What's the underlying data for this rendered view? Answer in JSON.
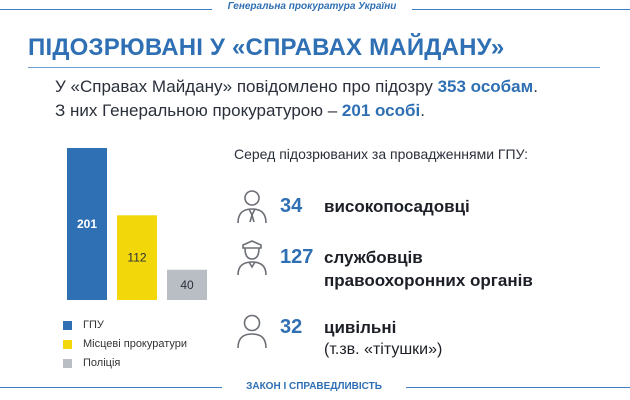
{
  "header": {
    "org": "Генеральна прокуратура України"
  },
  "title": "ПІДОЗРЮВАНІ У «СПРАВАХ МАЙДАНУ»",
  "lead": {
    "line1_prefix": "У «Справах Майдану» повідомлено про підозру ",
    "line1_highlight": "353 особам",
    "line1_suffix": ".",
    "line2_prefix": "З них Генеральною прокуратурою – ",
    "line2_highlight": "201 особі",
    "line2_suffix": "."
  },
  "chart_data": {
    "type": "bar",
    "categories": [
      "ГПУ",
      "Місцеві прокуратури",
      "Поліція"
    ],
    "values": [
      201,
      112,
      40
    ],
    "colors": [
      "#2f6fb3",
      "#f2d70b",
      "#b9bec4"
    ],
    "label_colors": [
      "#ffffff",
      "#2a2f3a",
      "#2a2f3a"
    ]
  },
  "legend": [
    {
      "label": "ГПУ",
      "color": "#2f6fb3"
    },
    {
      "label": "Місцеві прокуратури",
      "color": "#f2d70b"
    },
    {
      "label": "Поліція",
      "color": "#b9bec4"
    }
  ],
  "breakdown": {
    "heading": "Серед підозрюваних за провадженнями ГПУ:",
    "items": [
      {
        "count": "34",
        "label": "високопосадовці",
        "sub": "",
        "icon": "official-icon"
      },
      {
        "count": "127",
        "label": "службовців",
        "label2": "правоохоронних органів",
        "icon": "police-officer-icon"
      },
      {
        "count": "32",
        "label": "цивільні",
        "sub": "(т.зв. «тітушки»)",
        "icon": "civilian-icon"
      }
    ]
  },
  "footer": {
    "motto": "ЗАКОН І СПРАВЕДЛИВІСТЬ"
  },
  "colors": {
    "accent": "#2f6fb3",
    "yellow": "#f2d70b",
    "grey": "#b9bec4"
  }
}
